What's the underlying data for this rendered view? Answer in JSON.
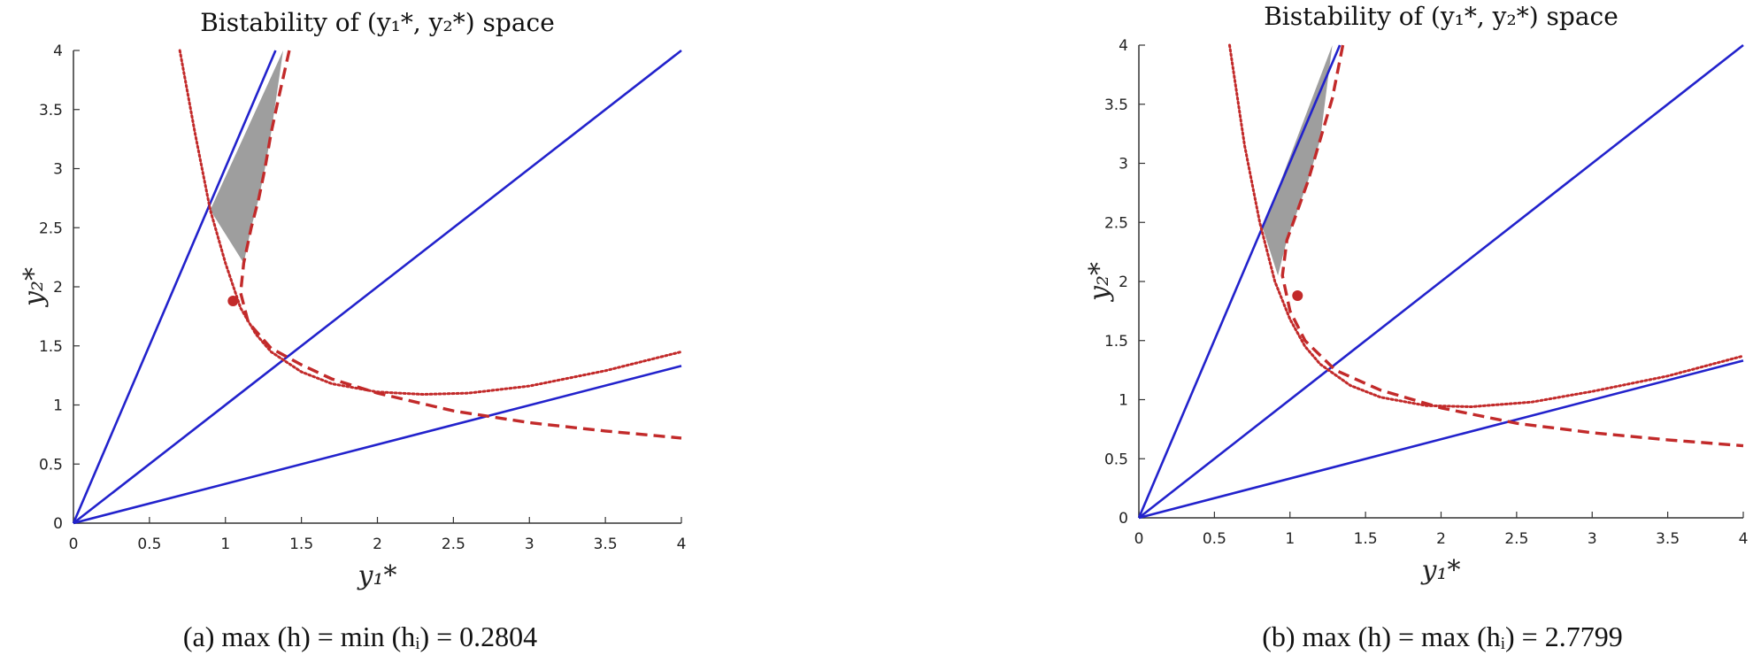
{
  "chart_data": [
    {
      "type": "line",
      "title": "Bistability of (y₁*, y₂*) space",
      "xlabel": "y₁*",
      "ylabel": "y₂*",
      "xlim": [
        0,
        4
      ],
      "ylim": [
        0,
        4
      ],
      "xticks": [
        "0",
        "0.5",
        "1",
        "1.5",
        "2",
        "2.5",
        "3",
        "3.5",
        "4"
      ],
      "yticks": [
        "0",
        "0.5",
        "1",
        "1.5",
        "2",
        "2.5",
        "3",
        "3.5",
        "4"
      ],
      "caption": "(a)  max (h) = min (hᵢ) = 0.2804",
      "grid": false,
      "series": [
        {
          "style": "solid",
          "color": "#2222cc",
          "x": [
            0,
            1.33
          ],
          "y": [
            0,
            4
          ]
        },
        {
          "style": "solid",
          "color": "#2222cc",
          "x": [
            0,
            4
          ],
          "y": [
            0,
            4
          ]
        },
        {
          "style": "solid",
          "color": "#2222cc",
          "x": [
            0,
            4
          ],
          "y": [
            0,
            1.33
          ]
        },
        {
          "style": "dotted",
          "color": "#c22a2a",
          "x": [
            0.7,
            0.8,
            0.9,
            1.0,
            1.1,
            1.2,
            1.3,
            1.5,
            1.7,
            2.0,
            2.3,
            2.6,
            3.0,
            3.5,
            4.0
          ],
          "y": [
            4.0,
            3.3,
            2.65,
            2.2,
            1.82,
            1.6,
            1.45,
            1.28,
            1.18,
            1.11,
            1.09,
            1.1,
            1.16,
            1.29,
            1.45
          ]
        },
        {
          "style": "dashed",
          "color": "#c22a2a",
          "x": [
            1.42,
            1.35,
            1.3,
            1.26,
            1.22,
            1.17,
            1.12,
            1.1,
            1.15,
            1.3,
            1.5,
            1.7,
            2.0,
            2.5,
            3.0,
            3.5,
            4.0
          ],
          "y": [
            4.0,
            3.6,
            3.3,
            3.0,
            2.75,
            2.5,
            2.2,
            1.95,
            1.7,
            1.48,
            1.34,
            1.22,
            1.1,
            0.95,
            0.85,
            0.78,
            0.72
          ]
        },
        {
          "style": "fill",
          "color": "#999999",
          "x": [
            1.38,
            0.9,
            1.12,
            1.17,
            1.22,
            1.26,
            1.3
          ],
          "y": [
            4.0,
            2.65,
            2.2,
            2.5,
            2.75,
            3.0,
            3.3
          ]
        },
        {
          "style": "marker",
          "color": "#c22a2a",
          "x": [
            1.05
          ],
          "y": [
            1.88
          ]
        }
      ]
    },
    {
      "type": "line",
      "title": "Bistability of (y₁*, y₂*) space",
      "xlabel": "y₁*",
      "ylabel": "y₂*",
      "xlim": [
        0,
        4
      ],
      "ylim": [
        0,
        4
      ],
      "xticks": [
        "0",
        "0.5",
        "1",
        "1.5",
        "2",
        "2.5",
        "3",
        "3.5",
        "4"
      ],
      "yticks": [
        "0",
        "0.5",
        "1",
        "1.5",
        "2",
        "2.5",
        "3",
        "3.5",
        "4"
      ],
      "caption": "(b)  max (h) = max (hᵢ) = 2.7799",
      "grid": false,
      "series": [
        {
          "style": "solid",
          "color": "#2222cc",
          "x": [
            0,
            1.33
          ],
          "y": [
            0,
            4
          ]
        },
        {
          "style": "solid",
          "color": "#2222cc",
          "x": [
            0,
            4
          ],
          "y": [
            0,
            4
          ]
        },
        {
          "style": "solid",
          "color": "#2222cc",
          "x": [
            0,
            4
          ],
          "y": [
            0,
            1.33
          ]
        },
        {
          "style": "dotted",
          "color": "#c22a2a",
          "x": [
            0.6,
            0.7,
            0.8,
            0.9,
            1.0,
            1.1,
            1.2,
            1.4,
            1.6,
            1.9,
            2.2,
            2.6,
            3.0,
            3.5,
            4.0
          ],
          "y": [
            4.0,
            3.15,
            2.5,
            2.0,
            1.68,
            1.45,
            1.3,
            1.12,
            1.02,
            0.95,
            0.94,
            0.98,
            1.07,
            1.2,
            1.37
          ]
        },
        {
          "style": "dashed",
          "color": "#c22a2a",
          "x": [
            1.35,
            1.28,
            1.2,
            1.12,
            1.05,
            0.98,
            0.95,
            1.0,
            1.1,
            1.3,
            1.6,
            2.0,
            2.5,
            3.0,
            3.5,
            4.0
          ],
          "y": [
            4.0,
            3.55,
            3.2,
            2.85,
            2.6,
            2.35,
            2.05,
            1.75,
            1.5,
            1.25,
            1.08,
            0.93,
            0.8,
            0.72,
            0.66,
            0.61
          ]
        },
        {
          "style": "fill",
          "color": "#999999",
          "x": [
            1.28,
            0.82,
            0.92,
            0.98,
            1.05,
            1.12,
            1.2
          ],
          "y": [
            4.0,
            2.45,
            2.05,
            2.35,
            2.6,
            2.85,
            3.2
          ]
        },
        {
          "style": "marker",
          "color": "#c22a2a",
          "x": [
            1.05
          ],
          "y": [
            1.88
          ]
        }
      ]
    }
  ]
}
